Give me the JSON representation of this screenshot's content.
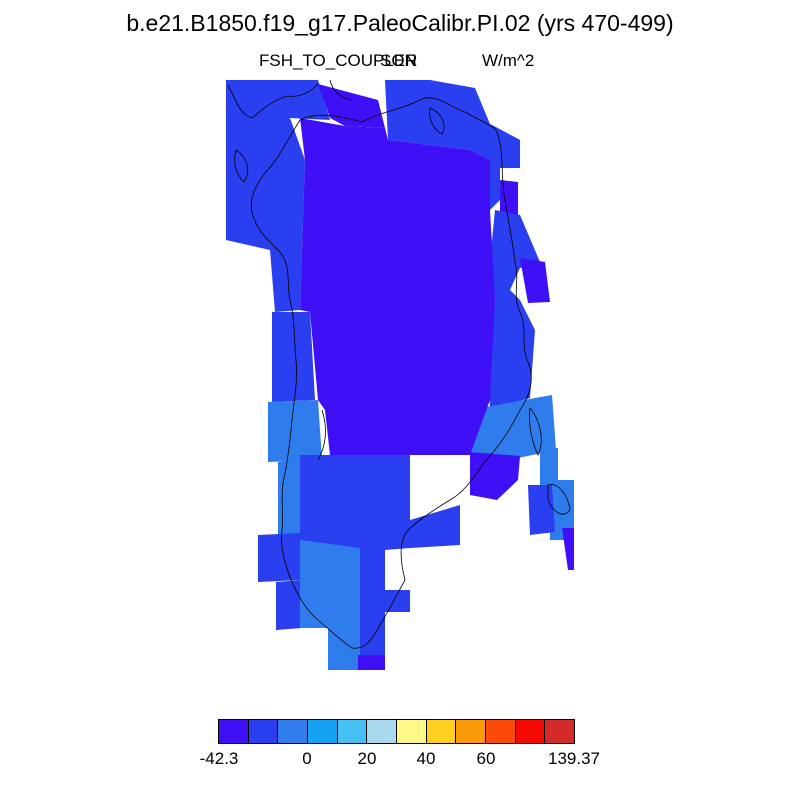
{
  "title": "b.e21.B1850.f19_g17.PaleoCalibr.PI.02 (yrs 470-499)",
  "subtitle": {
    "variable": "FSH_TO_COUPLER",
    "season": "SON",
    "units": "W/m^2"
  },
  "colors": {
    "c0": "#3f0ff5",
    "c1": "#2a3ff0",
    "c2": "#2f7ded",
    "c3": "#13a3f2",
    "c4": "#45c2f3",
    "c5": "#a9d9ee",
    "c6": "#fdf887",
    "c7": "#fdd020",
    "c8": "#fc9b0a",
    "c9": "#fc4a08",
    "c10": "#f40a02",
    "c11": "#d32a2a"
  },
  "colorbar": {
    "ticks": [
      {
        "label": "-42.3"
      },
      {
        "label": "0"
      },
      {
        "label": "20"
      },
      {
        "label": "40"
      },
      {
        "label": "60"
      },
      {
        "label": "139.37"
      }
    ]
  },
  "chart_data": {
    "type": "heatmap",
    "region": "Greenland",
    "title": "b.e21.B1850.f19_g17.PaleoCalibr.PI.02 (yrs 470-499)",
    "variable": "FSH_TO_COUPLER",
    "season": "SON",
    "units": "W/m^2",
    "colorbar_min": -42.3,
    "colorbar_max": 139.37,
    "colorbar_bins": 12,
    "colorbar_labels": [
      "-42.3",
      "0",
      "20",
      "40",
      "60",
      "139.37"
    ],
    "field_summary": "Greenland interior mostly in the lowest bin (below about -30 W/m^2); coastal margins in bins 2-3 (about -30 to 0 W/m^2)"
  }
}
